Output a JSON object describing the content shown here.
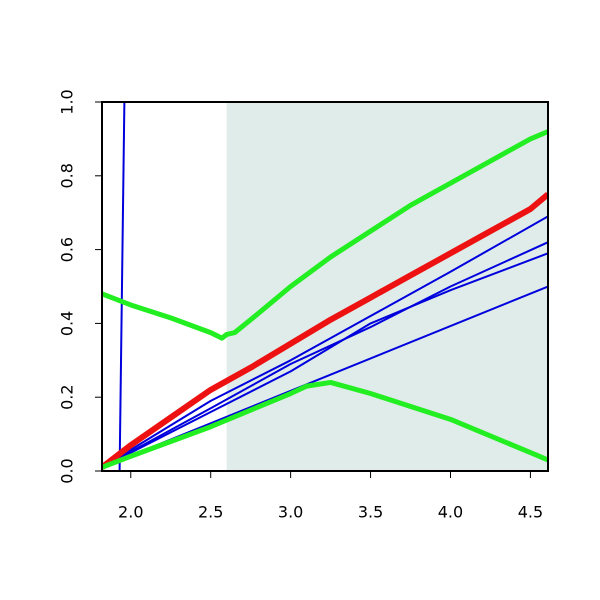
{
  "chart_data": {
    "type": "line",
    "xlim": [
      1.82,
      4.61
    ],
    "ylim": [
      0,
      1
    ],
    "xticks": [
      {
        "value": 2.0,
        "label": "2.0"
      },
      {
        "value": 2.5,
        "label": "2.5"
      },
      {
        "value": 3.0,
        "label": "3.0"
      },
      {
        "value": 3.5,
        "label": "3.5"
      },
      {
        "value": 4.0,
        "label": "4.0"
      },
      {
        "value": 4.5,
        "label": "4.5"
      }
    ],
    "yticks": [
      {
        "value": 0,
        "label": "0.0"
      },
      {
        "value": 0.2,
        "label": "0.2"
      },
      {
        "value": 0.4,
        "label": "0.4"
      },
      {
        "value": 0.6,
        "label": "0.6"
      },
      {
        "value": 0.8,
        "label": "0.8"
      },
      {
        "value": 1,
        "label": "1.0"
      }
    ],
    "shade_from": 2.6,
    "shade_color": "#e0ecea",
    "series": [
      {
        "color": "#0000dd",
        "width": 2,
        "x": [
          1.82,
          1.93,
          1.96,
          4.61
        ],
        "values": [
          0,
          0,
          1,
          1
        ]
      },
      {
        "color": "#0000dd",
        "width": 2,
        "x": [
          1.82,
          2.5,
          3.0,
          3.5,
          4.0,
          4.61
        ],
        "values": [
          0.01,
          0.19,
          0.3,
          0.42,
          0.54,
          0.69
        ]
      },
      {
        "color": "#0000dd",
        "width": 2,
        "x": [
          1.82,
          2.5,
          3.0,
          3.5,
          4.0,
          4.61
        ],
        "values": [
          0.01,
          0.17,
          0.29,
          0.39,
          0.5,
          0.62
        ]
      },
      {
        "color": "#0000dd",
        "width": 2,
        "x": [
          1.82,
          2.5,
          3.0,
          3.5,
          4.0,
          4.61
        ],
        "values": [
          0.01,
          0.16,
          0.27,
          0.4,
          0.49,
          0.59
        ]
      },
      {
        "color": "#0000dd",
        "width": 2,
        "x": [
          1.82,
          4.61
        ],
        "values": [
          0.01,
          0.5
        ]
      },
      {
        "color": "#ee1111",
        "width": 6,
        "x": [
          1.82,
          2.0,
          2.25,
          2.5,
          2.75,
          3.0,
          3.25,
          3.5,
          3.75,
          4.0,
          4.25,
          4.5,
          4.61
        ],
        "values": [
          0.01,
          0.07,
          0.145,
          0.22,
          0.28,
          0.345,
          0.41,
          0.47,
          0.53,
          0.59,
          0.65,
          0.71,
          0.75
        ]
      },
      {
        "color": "#22ee22",
        "width": 5,
        "x": [
          1.82,
          2.0,
          2.25,
          2.5,
          2.57,
          2.6,
          2.65,
          2.75,
          3.0,
          3.25,
          3.5,
          3.75,
          4.0,
          4.25,
          4.5,
          4.61
        ],
        "values": [
          0.48,
          0.45,
          0.415,
          0.375,
          0.36,
          0.37,
          0.375,
          0.41,
          0.5,
          0.58,
          0.65,
          0.72,
          0.78,
          0.84,
          0.9,
          0.92
        ]
      },
      {
        "color": "#22ee22",
        "width": 5,
        "x": [
          1.82,
          2.0,
          2.5,
          3.0,
          3.1,
          3.25,
          3.5,
          4.0,
          4.5,
          4.61
        ],
        "values": [
          0.01,
          0.04,
          0.12,
          0.21,
          0.23,
          0.24,
          0.21,
          0.14,
          0.05,
          0.03
        ]
      }
    ]
  }
}
